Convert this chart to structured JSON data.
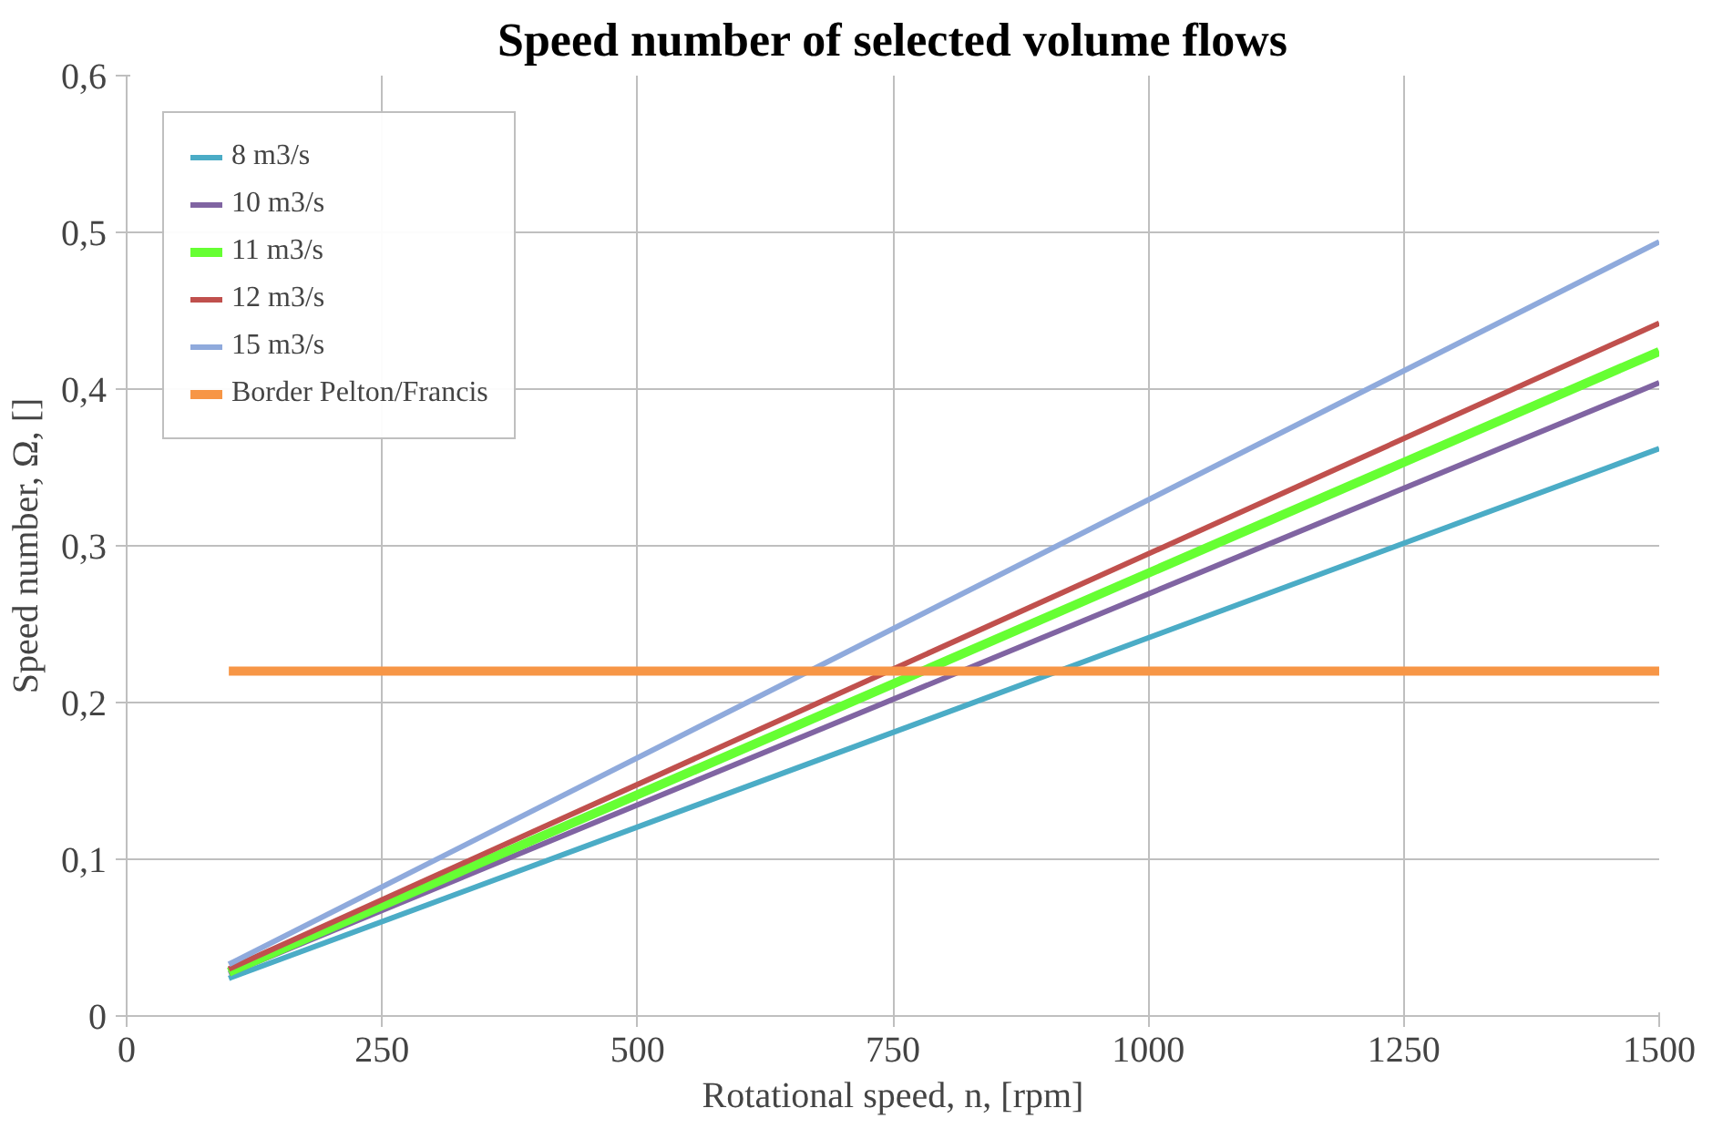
{
  "chart_data": {
    "type": "line",
    "title": "Speed number of selected volume flows",
    "xlabel": "Rotational speed, n, [rpm]",
    "ylabel": "Speed number, Ω, []",
    "x": [
      100,
      1500
    ],
    "series": [
      {
        "name": "8 m3/s",
        "color": "#4bacc6",
        "values": [
          0.024,
          0.362
        ]
      },
      {
        "name": "10 m3/s",
        "color": "#8064a2",
        "values": [
          0.027,
          0.404
        ]
      },
      {
        "name": "11 m3/s",
        "color": "#66ff33",
        "values": [
          0.028,
          0.424
        ]
      },
      {
        "name": "12 m3/s",
        "color": "#c0504d",
        "values": [
          0.03,
          0.442
        ]
      },
      {
        "name": "15 m3/s",
        "color": "#8faadc",
        "values": [
          0.033,
          0.494
        ]
      },
      {
        "name": "Border Pelton/Francis",
        "color": "#f79646",
        "values": [
          0.22,
          0.22
        ]
      }
    ],
    "xlim": [
      0,
      1500
    ],
    "xticks": [
      0,
      250,
      500,
      750,
      1000,
      1250,
      1500
    ],
    "ylim": [
      0,
      0.6
    ],
    "yticks": [
      0,
      {
        "value": 0.1,
        "label": "0,1"
      },
      {
        "value": 0.2,
        "label": "0,2"
      },
      {
        "value": 0.3,
        "label": "0,3"
      },
      {
        "value": 0.4,
        "label": "0,4"
      },
      {
        "value": 0.5,
        "label": "0,5"
      },
      {
        "value": 0.6,
        "label": "0,6"
      }
    ],
    "grid": true,
    "legend": "top left",
    "marker": "none",
    "line_style": "solid"
  }
}
